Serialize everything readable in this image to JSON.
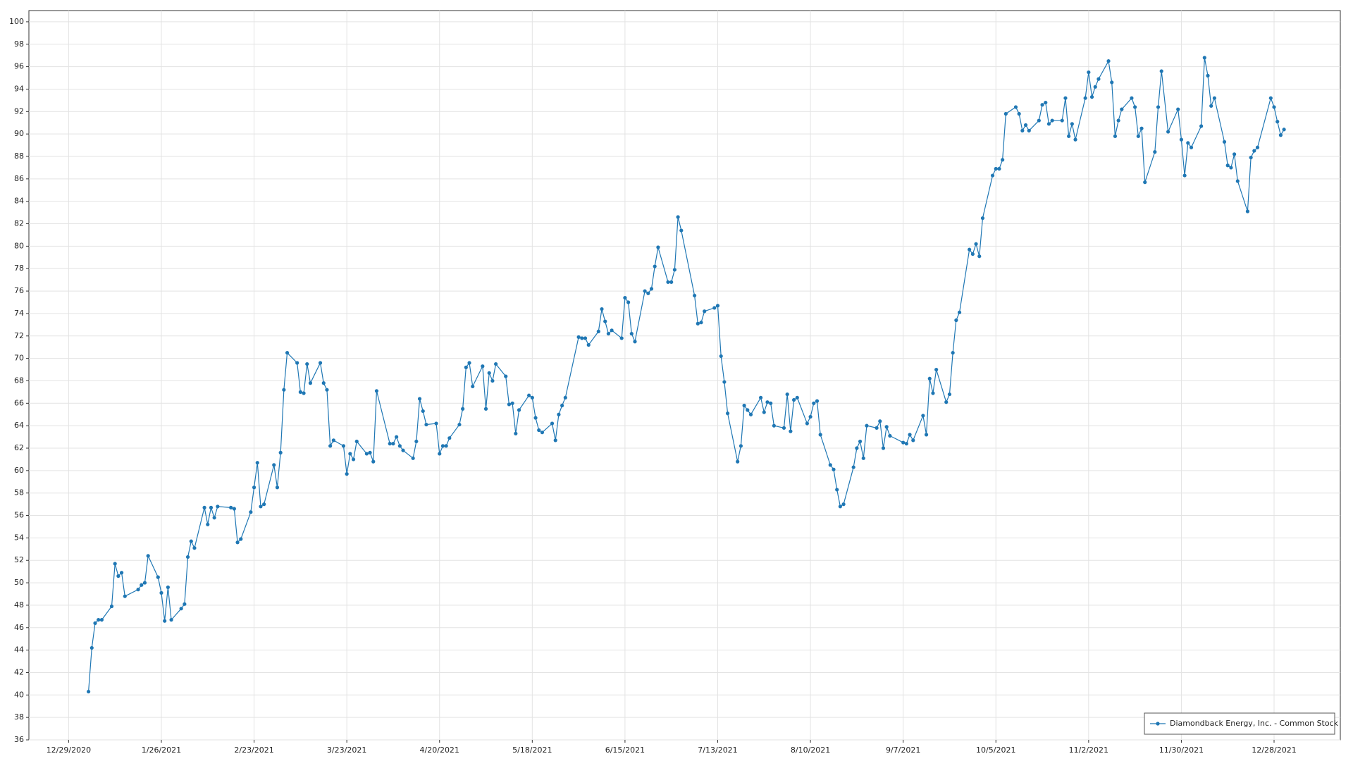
{
  "chart_data": {
    "type": "line",
    "legend": "lower right",
    "grid": true,
    "xlim": [
      "12/17/2020",
      "1/17/2022"
    ],
    "xticks": [
      "12/29/2020",
      "1/26/2021",
      "2/23/2021",
      "3/23/2021",
      "4/20/2021",
      "5/18/2021",
      "6/15/2021",
      "7/13/2021",
      "8/10/2021",
      "9/7/2021",
      "10/5/2021",
      "11/2/2021",
      "11/30/2021",
      "12/28/2021"
    ],
    "ylim": [
      36,
      101
    ],
    "yticks": [
      36,
      38,
      40,
      42,
      44,
      46,
      48,
      50,
      52,
      54,
      56,
      58,
      60,
      62,
      64,
      66,
      68,
      70,
      72,
      74,
      76,
      78,
      80,
      82,
      84,
      86,
      88,
      90,
      92,
      94,
      96,
      98,
      100
    ],
    "x": [
      "1/4/2021",
      "1/5/2021",
      "1/6/2021",
      "1/7/2021",
      "1/8/2021",
      "1/11/2021",
      "1/12/2021",
      "1/13/2021",
      "1/14/2021",
      "1/15/2021",
      "1/19/2021",
      "1/20/2021",
      "1/21/2021",
      "1/22/2021",
      "1/25/2021",
      "1/26/2021",
      "1/27/2021",
      "1/28/2021",
      "1/29/2021",
      "2/1/2021",
      "2/2/2021",
      "2/3/2021",
      "2/4/2021",
      "2/5/2021",
      "2/8/2021",
      "2/9/2021",
      "2/10/2021",
      "2/11/2021",
      "2/12/2021",
      "2/16/2021",
      "2/17/2021",
      "2/18/2021",
      "2/19/2021",
      "2/22/2021",
      "2/23/2021",
      "2/24/2021",
      "2/25/2021",
      "2/26/2021",
      "3/1/2021",
      "3/2/2021",
      "3/3/2021",
      "3/4/2021",
      "3/5/2021",
      "3/8/2021",
      "3/9/2021",
      "3/10/2021",
      "3/11/2021",
      "3/12/2021",
      "3/15/2021",
      "3/16/2021",
      "3/17/2021",
      "3/18/2021",
      "3/19/2021",
      "3/22/2021",
      "3/23/2021",
      "3/24/2021",
      "3/25/2021",
      "3/26/2021",
      "3/29/2021",
      "3/30/2021",
      "3/31/2021",
      "4/1/2021",
      "4/5/2021",
      "4/6/2021",
      "4/7/2021",
      "4/8/2021",
      "4/9/2021",
      "4/12/2021",
      "4/13/2021",
      "4/14/2021",
      "4/15/2021",
      "4/16/2021",
      "4/19/2021",
      "4/20/2021",
      "4/21/2021",
      "4/22/2021",
      "4/23/2021",
      "4/26/2021",
      "4/27/2021",
      "4/28/2021",
      "4/29/2021",
      "4/30/2021",
      "5/3/2021",
      "5/4/2021",
      "5/5/2021",
      "5/6/2021",
      "5/7/2021",
      "5/10/2021",
      "5/11/2021",
      "5/12/2021",
      "5/13/2021",
      "5/14/2021",
      "5/17/2021",
      "5/18/2021",
      "5/19/2021",
      "5/20/2021",
      "5/21/2021",
      "5/24/2021",
      "5/25/2021",
      "5/26/2021",
      "5/27/2021",
      "5/28/2021",
      "6/1/2021",
      "6/2/2021",
      "6/3/2021",
      "6/4/2021",
      "6/7/2021",
      "6/8/2021",
      "6/9/2021",
      "6/10/2021",
      "6/11/2021",
      "6/14/2021",
      "6/15/2021",
      "6/16/2021",
      "6/17/2021",
      "6/18/2021",
      "6/21/2021",
      "6/22/2021",
      "6/23/2021",
      "6/24/2021",
      "6/25/2021",
      "6/28/2021",
      "6/29/2021",
      "6/30/2021",
      "7/1/2021",
      "7/2/2021",
      "7/6/2021",
      "7/7/2021",
      "7/8/2021",
      "7/9/2021",
      "7/12/2021",
      "7/13/2021",
      "7/14/2021",
      "7/15/2021",
      "7/16/2021",
      "7/19/2021",
      "7/20/2021",
      "7/21/2021",
      "7/22/2021",
      "7/23/2021",
      "7/26/2021",
      "7/27/2021",
      "7/28/2021",
      "7/29/2021",
      "7/30/2021",
      "8/2/2021",
      "8/3/2021",
      "8/4/2021",
      "8/5/2021",
      "8/6/2021",
      "8/9/2021",
      "8/10/2021",
      "8/11/2021",
      "8/12/2021",
      "8/13/2021",
      "8/16/2021",
      "8/17/2021",
      "8/18/2021",
      "8/19/2021",
      "8/20/2021",
      "8/23/2021",
      "8/24/2021",
      "8/25/2021",
      "8/26/2021",
      "8/27/2021",
      "8/30/2021",
      "8/31/2021",
      "9/1/2021",
      "9/2/2021",
      "9/3/2021",
      "9/7/2021",
      "9/8/2021",
      "9/9/2021",
      "9/10/2021",
      "9/13/2021",
      "9/14/2021",
      "9/15/2021",
      "9/16/2021",
      "9/17/2021",
      "9/20/2021",
      "9/21/2021",
      "9/22/2021",
      "9/23/2021",
      "9/24/2021",
      "9/27/2021",
      "9/28/2021",
      "9/29/2021",
      "9/30/2021",
      "10/1/2021",
      "10/4/2021",
      "10/5/2021",
      "10/6/2021",
      "10/7/2021",
      "10/8/2021",
      "10/11/2021",
      "10/12/2021",
      "10/13/2021",
      "10/14/2021",
      "10/15/2021",
      "10/18/2021",
      "10/19/2021",
      "10/20/2021",
      "10/21/2021",
      "10/22/2021",
      "10/25/2021",
      "10/26/2021",
      "10/27/2021",
      "10/28/2021",
      "10/29/2021",
      "11/1/2021",
      "11/2/2021",
      "11/3/2021",
      "11/4/2021",
      "11/5/2021",
      "11/8/2021",
      "11/9/2021",
      "11/10/2021",
      "11/11/2021",
      "11/12/2021",
      "11/15/2021",
      "11/16/2021",
      "11/17/2021",
      "11/18/2021",
      "11/19/2021",
      "11/22/2021",
      "11/23/2021",
      "11/24/2021",
      "11/26/2021",
      "11/29/2021",
      "11/30/2021",
      "12/1/2021",
      "12/2/2021",
      "12/3/2021",
      "12/6/2021",
      "12/7/2021",
      "12/8/2021",
      "12/9/2021",
      "12/10/2021",
      "12/13/2021",
      "12/14/2021",
      "12/15/2021",
      "12/16/2021",
      "12/17/2021",
      "12/20/2021",
      "12/21/2021",
      "12/22/2021",
      "12/23/2021",
      "12/27/2021",
      "12/28/2021",
      "12/29/2021",
      "12/30/2021",
      "12/31/2021"
    ],
    "series": [
      {
        "name": "Diamondback Energy, Inc. - Common Stock",
        "color": "#1f77b4",
        "values": [
          40.3,
          44.2,
          46.4,
          46.7,
          46.7,
          47.9,
          51.7,
          50.6,
          50.9,
          48.8,
          49.4,
          49.8,
          50.0,
          52.4,
          50.5,
          49.1,
          46.6,
          49.6,
          46.7,
          47.7,
          48.1,
          52.3,
          53.7,
          53.1,
          56.7,
          55.2,
          56.7,
          55.8,
          56.8,
          56.7,
          56.6,
          53.6,
          53.9,
          56.3,
          58.5,
          60.7,
          56.8,
          57.0,
          60.5,
          58.5,
          61.6,
          67.2,
          70.5,
          69.6,
          67.0,
          66.9,
          69.5,
          67.8,
          69.6,
          67.8,
          67.2,
          62.2,
          62.7,
          62.2,
          59.7,
          61.5,
          61.0,
          62.6,
          61.5,
          61.6,
          60.8,
          67.1,
          62.4,
          62.4,
          63.0,
          62.2,
          61.8,
          61.1,
          62.6,
          66.4,
          65.3,
          64.1,
          64.2,
          61.5,
          62.2,
          62.2,
          62.9,
          64.1,
          65.5,
          69.2,
          69.6,
          67.5,
          69.3,
          65.5,
          68.7,
          68.0,
          69.5,
          68.4,
          65.9,
          66.0,
          63.3,
          65.4,
          66.7,
          66.5,
          64.7,
          63.6,
          63.4,
          64.2,
          62.7,
          65.0,
          65.8,
          66.5,
          71.9,
          71.8,
          71.8,
          71.2,
          72.4,
          74.4,
          73.3,
          72.2,
          72.5,
          71.8,
          75.4,
          75.0,
          72.2,
          71.5,
          76.0,
          75.8,
          76.2,
          78.2,
          79.9,
          76.8,
          76.8,
          77.9,
          82.6,
          81.4,
          75.6,
          73.1,
          73.2,
          74.2,
          74.5,
          74.7,
          70.2,
          67.9,
          65.1,
          60.8,
          62.2,
          65.8,
          65.4,
          65.0,
          66.5,
          65.2,
          66.1,
          66.0,
          64.0,
          63.8,
          66.8,
          63.5,
          66.3,
          66.5,
          64.2,
          64.8,
          66.0,
          66.2,
          63.2,
          60.5,
          60.1,
          58.3,
          56.8,
          57.0,
          60.3,
          62.0,
          62.6,
          61.1,
          64.0,
          63.8,
          64.4,
          62.0,
          63.9,
          63.1,
          62.5,
          62.4,
          63.2,
          62.7,
          64.9,
          63.2,
          68.2,
          66.9,
          69.0,
          66.1,
          66.8,
          70.5,
          73.4,
          74.1,
          79.7,
          79.3,
          80.2,
          79.1,
          82.5,
          86.3,
          86.9,
          86.9,
          87.7,
          91.8,
          92.4,
          91.8,
          90.3,
          90.8,
          90.3,
          91.2,
          92.6,
          92.8,
          90.9,
          91.2,
          91.2,
          93.2,
          89.8,
          90.9,
          89.5,
          93.2,
          95.5,
          93.3,
          94.2,
          94.9,
          96.5,
          94.6,
          89.8,
          91.2,
          92.2,
          93.2,
          92.4,
          89.8,
          90.5,
          85.7,
          88.4,
          92.4,
          95.6,
          90.2,
          92.2,
          89.5,
          86.3,
          89.2,
          88.8,
          90.7,
          96.8,
          95.2,
          92.5,
          93.2,
          89.3,
          87.2,
          87.0,
          88.2,
          85.8,
          83.1,
          87.9,
          88.5,
          88.8,
          93.2,
          92.4,
          91.1,
          89.9,
          90.4
        ]
      }
    ]
  }
}
